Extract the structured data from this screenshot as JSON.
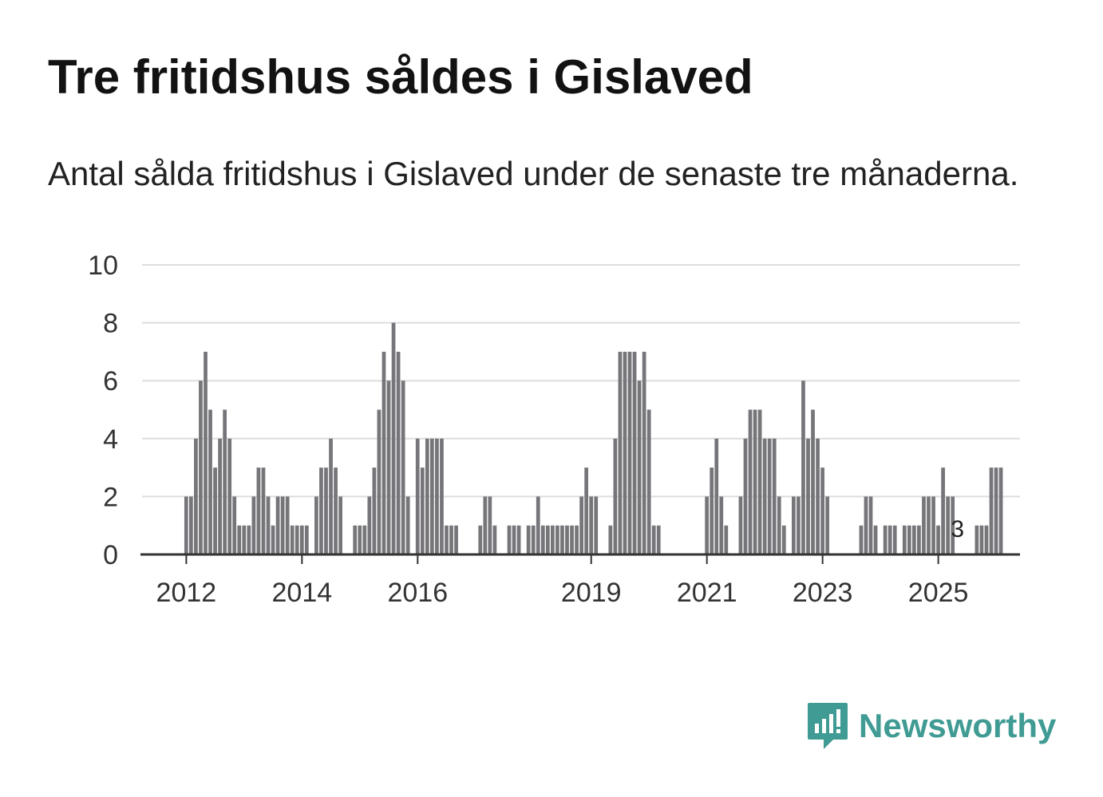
{
  "header": {
    "title": "Tre fritidshus såldes i Gislaved",
    "subtitle": "Antal sålda fritidshus i Gislaved under de senaste tre månaderna."
  },
  "brand": {
    "name": "Newsworthy",
    "color": "#3f9b93",
    "icon": "newsworthy-logo-icon"
  },
  "colors": {
    "bar": "#76757a",
    "highlight": "#2a9d96",
    "grid": "#dddddd",
    "axis": "#333333"
  },
  "chart_data": {
    "type": "bar",
    "title": "Tre fritidshus såldes i Gislaved",
    "subtitle": "Antal sålda fritidshus i Gislaved under de senaste tre månaderna.",
    "xlabel": "",
    "ylabel": "",
    "ylim": [
      0,
      10
    ],
    "yticks": [
      0,
      2,
      4,
      6,
      8,
      10
    ],
    "grid": true,
    "start_period": "2011-09",
    "x_ticks": [
      {
        "label": "2012",
        "index": 9
      },
      {
        "label": "2014",
        "index": 33
      },
      {
        "label": "2016",
        "index": 57
      },
      {
        "label": "2019",
        "index": 93
      },
      {
        "label": "2021",
        "index": 117
      },
      {
        "label": "2023",
        "index": 141
      },
      {
        "label": "2025",
        "index": 165
      }
    ],
    "values": [
      0,
      0,
      0,
      0,
      0,
      0,
      0,
      0,
      0,
      2,
      2,
      4,
      6,
      7,
      5,
      3,
      4,
      5,
      4,
      2,
      1,
      1,
      1,
      2,
      3,
      3,
      2,
      1,
      2,
      2,
      2,
      1,
      1,
      1,
      1,
      0,
      2,
      3,
      3,
      4,
      3,
      2,
      0,
      0,
      1,
      1,
      1,
      2,
      3,
      5,
      7,
      6,
      8,
      7,
      6,
      2,
      0,
      4,
      3,
      4,
      4,
      4,
      4,
      1,
      1,
      1,
      0,
      0,
      0,
      0,
      1,
      2,
      2,
      1,
      0,
      0,
      1,
      1,
      1,
      0,
      1,
      1,
      2,
      1,
      1,
      1,
      1,
      1,
      1,
      1,
      1,
      2,
      3,
      2,
      2,
      0,
      0,
      1,
      4,
      7,
      7,
      7,
      7,
      6,
      7,
      5,
      1,
      1,
      0,
      0,
      0,
      0,
      0,
      0,
      0,
      0,
      0,
      2,
      3,
      4,
      2,
      1,
      0,
      0,
      2,
      4,
      5,
      5,
      5,
      4,
      4,
      4,
      2,
      1,
      0,
      2,
      2,
      6,
      4,
      5,
      4,
      3,
      2,
      0,
      0,
      0,
      0,
      0,
      0,
      1,
      2,
      2,
      1,
      0,
      1,
      1,
      1,
      0,
      1,
      1,
      1,
      1,
      2,
      2,
      2,
      1,
      3,
      2,
      2,
      0,
      0,
      0,
      0,
      1,
      1,
      1,
      3,
      3,
      3
    ],
    "highlight_index": 169,
    "highlight_label": "3"
  }
}
